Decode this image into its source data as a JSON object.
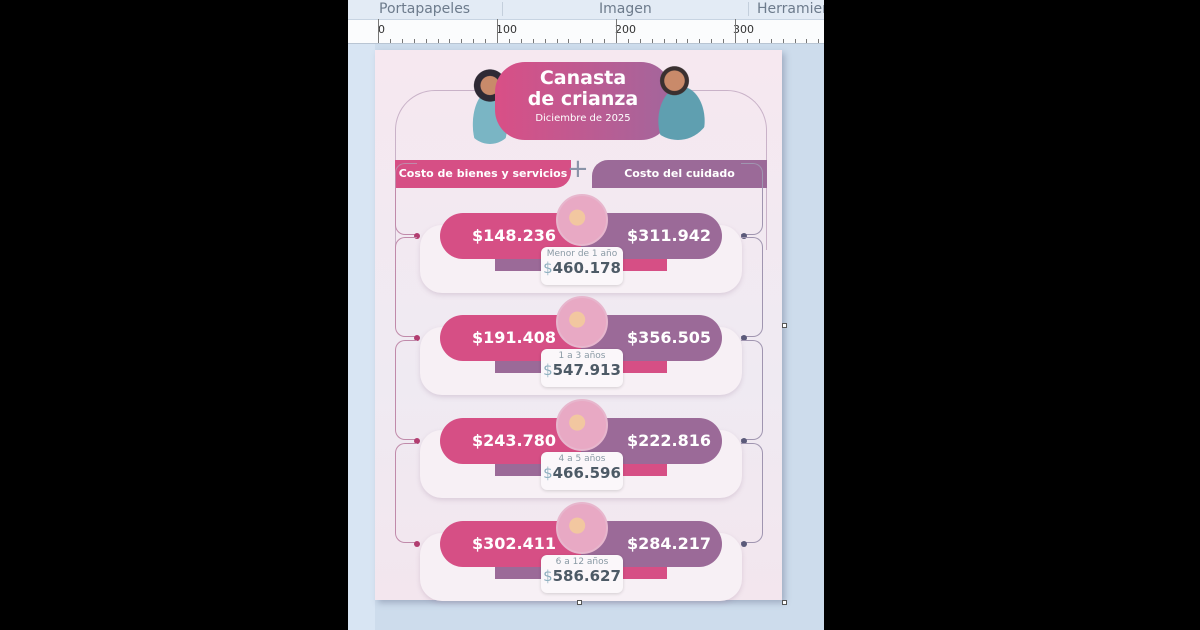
{
  "ribbon": {
    "groups": [
      "Portapapeles",
      "Imagen",
      "Herramientas"
    ]
  },
  "ruler": {
    "labels": [
      "0",
      "100",
      "200",
      "300"
    ]
  },
  "infographic": {
    "title_line1": "Canasta",
    "title_line2": "de crianza",
    "subtitle": "Diciembre de 2025",
    "header_left": "Costo de bienes y servicios",
    "header_right": "Costo del cuidado",
    "plus": "+",
    "colors": {
      "pink": "#d64f85",
      "purple": "#9b6a98"
    },
    "rows": [
      {
        "age": "Menor de 1 año",
        "goods": "$148.236",
        "care": "$311.942",
        "total_symbol": "$",
        "total": "460.178"
      },
      {
        "age": "1 a 3 años",
        "goods": "$191.408",
        "care": "$356.505",
        "total_symbol": "$",
        "total": "547.913"
      },
      {
        "age": "4 a 5 años",
        "goods": "$243.780",
        "care": "$222.816",
        "total_symbol": "$",
        "total": "466.596"
      },
      {
        "age": "6 a 12 años",
        "goods": "$302.411",
        "care": "$284.217",
        "total_symbol": "$",
        "total": "586.627"
      }
    ]
  }
}
